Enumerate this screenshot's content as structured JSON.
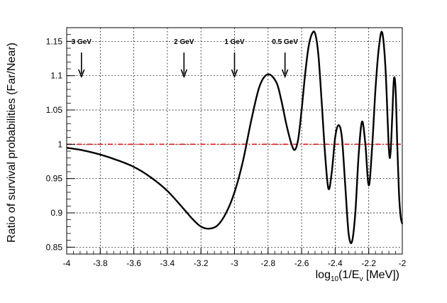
{
  "chart_data": {
    "type": "line",
    "title": "",
    "xlabel": {
      "main": "log",
      "sub": "10",
      "mid": "(1/E",
      "sub2": "ν",
      "tail": " [MeV])"
    },
    "ylabel": "Ratio of survival probabilities (Far/Near)",
    "xlim": [
      -4,
      -2
    ],
    "ylim": [
      0.84,
      1.17
    ],
    "grid": true,
    "x_ticks": [
      -4,
      -3.8,
      -3.6,
      -3.4,
      -3.2,
      -3,
      -2.8,
      -2.6,
      -2.4,
      -2.2,
      -2
    ],
    "x_tick_labels": [
      "-4",
      "-3.8",
      "-3.6",
      "-3.4",
      "-3.2",
      "-3",
      "-2.8",
      "-2.6",
      "-2.4",
      "-2.2",
      "-2"
    ],
    "y_ticks": [
      0.85,
      0.9,
      0.95,
      1,
      1.05,
      1.1,
      1.15
    ],
    "y_tick_labels": [
      "0.85",
      "0.9",
      "0.95",
      "1",
      "1.05",
      "1.1",
      "1.15"
    ],
    "reference_line": {
      "y": 1.0,
      "color": "#e8141c",
      "style": "dash-dot"
    },
    "series": [
      {
        "color": "#000000",
        "x": [
          -4.0,
          -3.9,
          -3.8,
          -3.7,
          -3.6,
          -3.5,
          -3.4,
          -3.3,
          -3.25,
          -3.2,
          -3.15,
          -3.1,
          -3.05,
          -3.0,
          -2.95,
          -2.9,
          -2.85,
          -2.8,
          -2.75,
          -2.72,
          -2.69,
          -2.66,
          -2.64,
          -2.62,
          -2.6,
          -2.58,
          -2.56,
          -2.54,
          -2.52,
          -2.5,
          -2.48,
          -2.46,
          -2.44,
          -2.42,
          -2.4,
          -2.38,
          -2.36,
          -2.34,
          -2.32,
          -2.3,
          -2.28,
          -2.26,
          -2.24,
          -2.22,
          -2.2,
          -2.18,
          -2.16,
          -2.14,
          -2.12,
          -2.1,
          -2.08,
          -2.07,
          -2.06,
          -2.05,
          -2.04,
          -2.03,
          -2.02,
          -2.01,
          -2.0
        ],
        "y": [
          0.995,
          0.991,
          0.985,
          0.977,
          0.967,
          0.952,
          0.932,
          0.905,
          0.891,
          0.88,
          0.877,
          0.882,
          0.9,
          0.93,
          0.975,
          1.035,
          1.085,
          1.102,
          1.09,
          1.063,
          1.028,
          1.0,
          0.992,
          1.008,
          1.05,
          1.1,
          1.14,
          1.16,
          1.162,
          1.13,
          1.06,
          0.985,
          0.935,
          0.96,
          1.01,
          1.028,
          1.01,
          0.94,
          0.87,
          0.858,
          0.9,
          0.985,
          1.033,
          1.0,
          0.94,
          0.995,
          1.08,
          1.14,
          1.163,
          1.11,
          0.993,
          0.988,
          1.04,
          1.095,
          1.08,
          1.0,
          0.93,
          0.895,
          0.884
        ]
      }
    ],
    "annotations": [
      {
        "label": "3 GeV",
        "x": -3.912
      },
      {
        "label": "2 GeV",
        "x": -3.301
      },
      {
        "label": "1 GeV",
        "x": -3.0
      },
      {
        "label": "0.5 GeV",
        "x": -2.699
      }
    ]
  }
}
